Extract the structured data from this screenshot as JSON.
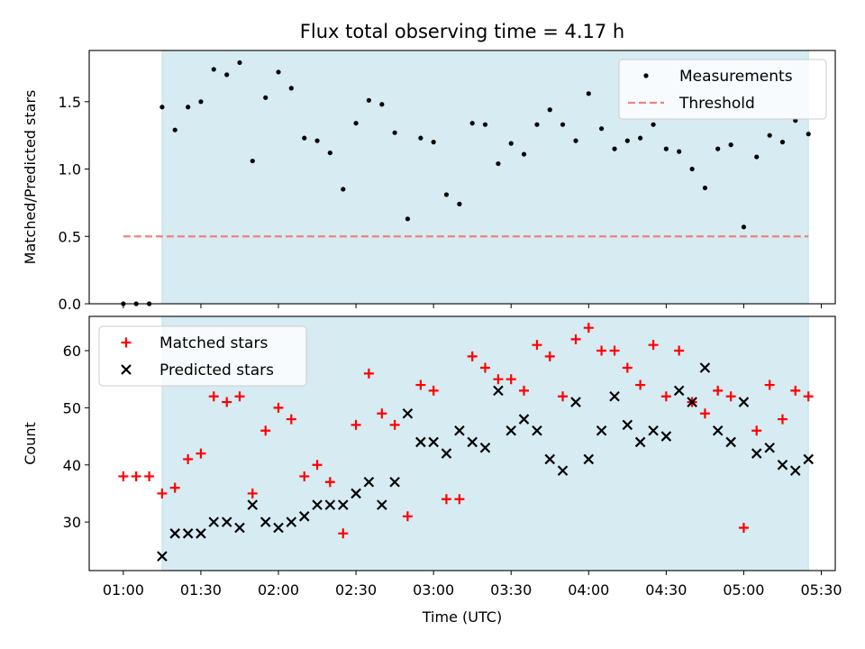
{
  "chart_data": [
    {
      "type": "scatter",
      "title": "Flux total observing time = 4.17 h",
      "ylabel": "Matched/Predicted stars",
      "xlim": [
        0.78,
        5.59
      ],
      "ylim": [
        0,
        1.88
      ],
      "yticks": [
        0.0,
        0.5,
        1.0,
        1.5
      ],
      "ytick_labels": [
        "0.0",
        "0.5",
        "1.0",
        "1.5"
      ],
      "xticks": [
        1.0,
        1.5,
        2.0,
        2.5,
        3.0,
        3.5,
        4.0,
        4.5,
        5.0,
        5.5
      ],
      "shaded_region": {
        "x": [
          1.25,
          5.417
        ],
        "color": "#add8e6",
        "alpha": 0.5
      },
      "legend": {
        "placement": "top-right",
        "entries": [
          "Measurements",
          "Threshold"
        ]
      },
      "series": [
        {
          "name": "Measurements",
          "marker": "dot",
          "color": "#000000",
          "x": [
            1.0,
            1.083,
            1.167,
            1.25,
            1.333,
            1.417,
            1.5,
            1.583,
            1.667,
            1.75,
            1.833,
            1.917,
            2.0,
            2.083,
            2.167,
            2.25,
            2.333,
            2.417,
            2.5,
            2.583,
            2.667,
            2.75,
            2.833,
            2.917,
            3.0,
            3.083,
            3.167,
            3.25,
            3.333,
            3.417,
            3.5,
            3.583,
            3.667,
            3.75,
            3.833,
            3.917,
            4.0,
            4.083,
            4.167,
            4.25,
            4.333,
            4.417,
            4.5,
            4.583,
            4.667,
            4.75,
            4.833,
            4.917,
            5.0,
            5.083,
            5.167,
            5.25,
            5.333,
            5.417
          ],
          "y": [
            0.0,
            0.0,
            0.0,
            1.46,
            1.29,
            1.46,
            1.5,
            1.74,
            1.7,
            1.79,
            1.06,
            1.53,
            1.72,
            1.6,
            1.23,
            1.21,
            1.12,
            0.85,
            1.34,
            1.51,
            1.48,
            1.27,
            0.63,
            1.23,
            1.2,
            0.81,
            0.74,
            1.34,
            1.33,
            1.04,
            1.19,
            1.11,
            1.33,
            1.44,
            1.33,
            1.21,
            1.56,
            1.3,
            1.15,
            1.21,
            1.23,
            1.33,
            1.15,
            1.13,
            1.0,
            0.86,
            1.15,
            1.18,
            0.57,
            1.09,
            1.25,
            1.2,
            1.36,
            1.26
          ]
        },
        {
          "name": "Threshold",
          "marker": "dashed-line",
          "color": "#f08080",
          "x": [
            1.0,
            5.417
          ],
          "y": [
            0.5,
            0.5
          ]
        }
      ]
    },
    {
      "type": "scatter",
      "xlabel": "Time (UTC)",
      "ylabel": "Count",
      "xlim": [
        0.78,
        5.59
      ],
      "ylim": [
        21.5,
        66.0
      ],
      "yticks": [
        30,
        40,
        50,
        60
      ],
      "ytick_labels": [
        "30",
        "40",
        "50",
        "60"
      ],
      "xticks": [
        1.0,
        1.5,
        2.0,
        2.5,
        3.0,
        3.5,
        4.0,
        4.5,
        5.0,
        5.5
      ],
      "xtick_labels": [
        "01:00",
        "01:30",
        "02:00",
        "02:30",
        "03:00",
        "03:30",
        "04:00",
        "04:30",
        "05:00",
        "05:30"
      ],
      "shaded_region": {
        "x": [
          1.25,
          5.417
        ],
        "color": "#add8e6",
        "alpha": 0.5
      },
      "legend": {
        "placement": "top-left",
        "entries": [
          "Matched stars",
          "Predicted stars"
        ]
      },
      "series": [
        {
          "name": "Matched stars",
          "marker": "plus",
          "color": "#ff0000",
          "x": [
            1.0,
            1.083,
            1.167,
            1.25,
            1.333,
            1.417,
            1.5,
            1.583,
            1.667,
            1.75,
            1.833,
            1.917,
            2.0,
            2.083,
            2.167,
            2.25,
            2.333,
            2.417,
            2.5,
            2.583,
            2.667,
            2.75,
            2.833,
            2.917,
            3.0,
            3.083,
            3.167,
            3.25,
            3.333,
            3.417,
            3.5,
            3.583,
            3.667,
            3.75,
            3.833,
            3.917,
            4.0,
            4.083,
            4.167,
            4.25,
            4.333,
            4.417,
            4.5,
            4.583,
            4.667,
            4.75,
            4.833,
            4.917,
            5.0,
            5.083,
            5.167,
            5.25,
            5.333,
            5.417
          ],
          "y": [
            38,
            38,
            38,
            35,
            36,
            41,
            42,
            52,
            51,
            52,
            35,
            46,
            50,
            48,
            38,
            40,
            37,
            28,
            47,
            56,
            49,
            47,
            31,
            54,
            53,
            34,
            34,
            59,
            57,
            55,
            55,
            53,
            61,
            59,
            52,
            62,
            64,
            60,
            60,
            57,
            54,
            61,
            52,
            60,
            51,
            49,
            53,
            52,
            29,
            46,
            54,
            48,
            53,
            52
          ]
        },
        {
          "name": "Predicted stars",
          "marker": "x",
          "color": "#000000",
          "x": [
            1.25,
            1.333,
            1.417,
            1.5,
            1.583,
            1.667,
            1.75,
            1.833,
            1.917,
            2.0,
            2.083,
            2.167,
            2.25,
            2.333,
            2.417,
            2.5,
            2.583,
            2.667,
            2.75,
            2.833,
            2.917,
            3.0,
            3.083,
            3.167,
            3.25,
            3.333,
            3.417,
            3.5,
            3.583,
            3.667,
            3.75,
            3.833,
            3.917,
            4.0,
            4.083,
            4.167,
            4.25,
            4.333,
            4.417,
            4.5,
            4.583,
            4.667,
            4.75,
            4.833,
            4.917,
            5.0,
            5.083,
            5.167,
            5.25,
            5.333,
            5.417
          ],
          "y": [
            24,
            28,
            28,
            28,
            30,
            30,
            29,
            33,
            30,
            29,
            30,
            31,
            33,
            33,
            33,
            35,
            37,
            33,
            37,
            49,
            44,
            44,
            42,
            46,
            44,
            43,
            53,
            46,
            48,
            46,
            41,
            39,
            51,
            41,
            46,
            52,
            47,
            44,
            46,
            45,
            53,
            51,
            57,
            46,
            44,
            51,
            42,
            43,
            40,
            39,
            41
          ]
        }
      ]
    }
  ]
}
